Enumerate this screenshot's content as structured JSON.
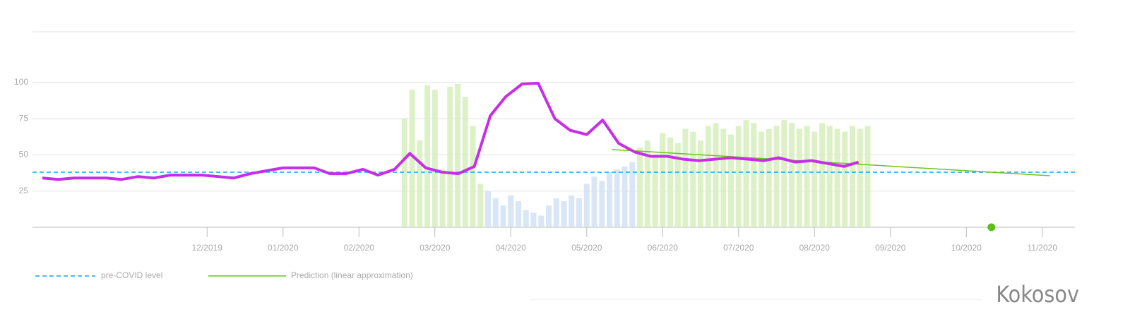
{
  "chart_data": {
    "type": "line",
    "x": [
      -2.17,
      -1.96,
      -1.75,
      -1.53,
      -1.33,
      -1.13,
      -0.91,
      -0.7,
      -0.49,
      -0.28,
      -0.07,
      0.15,
      0.35,
      0.57,
      0.78,
      1.0,
      1.2,
      1.41,
      1.62,
      1.83,
      2.05,
      2.25,
      2.47,
      2.67,
      2.88,
      3.1,
      3.31,
      3.52,
      3.73,
      3.93,
      4.15,
      4.36,
      4.58,
      4.78,
      5.0,
      5.21,
      5.42,
      5.63,
      5.84,
      6.06,
      6.27,
      6.48,
      6.69,
      6.9,
      7.12,
      7.33,
      7.53,
      7.75,
      7.96,
      8.18,
      8.39,
      8.58
    ],
    "values": [
      34,
      33,
      34,
      34,
      34,
      33,
      35,
      34,
      36,
      36,
      36,
      35,
      34,
      37,
      39,
      41,
      41,
      41,
      37,
      37,
      40,
      36,
      40,
      51,
      41,
      38,
      37,
      42,
      77,
      90,
      99,
      99.5,
      75,
      67,
      64,
      74,
      58,
      52,
      49,
      49,
      47,
      46,
      47,
      48,
      47,
      46,
      48,
      45,
      46,
      44,
      42,
      45
    ],
    "color": "#c62ee8",
    "bars": [
      {
        "color": "#d4edb8",
        "x": [
          2.6,
          2.7,
          2.8,
          2.9,
          3.0,
          3.1,
          3.2,
          3.3,
          3.4,
          3.5,
          3.6,
          5.7,
          5.8,
          5.9,
          6.0,
          6.1,
          6.2,
          6.3,
          6.4,
          6.5,
          6.6,
          6.7,
          6.8,
          6.9,
          7.0,
          7.1,
          7.2,
          7.3,
          7.4,
          7.5,
          7.6,
          7.7,
          7.8,
          7.9,
          8.0,
          8.1,
          8.2,
          8.3,
          8.4,
          8.5,
          8.6,
          8.7
        ],
        "values": [
          75,
          95,
          60,
          98,
          95,
          40,
          97,
          99,
          90,
          70,
          30,
          55,
          60,
          50,
          65,
          62,
          58,
          68,
          66,
          60,
          70,
          72,
          68,
          64,
          70,
          74,
          72,
          66,
          68,
          70,
          74,
          72,
          68,
          70,
          66,
          72,
          70,
          68,
          66,
          70,
          68,
          70
        ]
      },
      {
        "color": "#cfe0f3",
        "x": [
          3.7,
          3.8,
          3.9,
          4.0,
          4.1,
          4.2,
          4.3,
          4.4,
          4.5,
          4.6,
          4.7,
          4.8,
          4.9,
          5.0,
          5.1,
          5.2,
          5.3,
          5.4,
          5.5,
          5.6
        ],
        "values": [
          25,
          20,
          15,
          22,
          18,
          12,
          10,
          8,
          15,
          20,
          18,
          22,
          20,
          30,
          35,
          32,
          38,
          40,
          42,
          45
        ]
      }
    ],
    "reference_line": {
      "name": "pre-COVID level",
      "value": 38,
      "color": "#1aa3e8"
    },
    "prediction": {
      "name": "Prediction (linear approximation)",
      "x": [
        5.33,
        11.1
      ],
      "values": [
        53.7,
        35.6
      ],
      "color": "#6cc41f"
    },
    "marker": {
      "x": 10.33,
      "value": 0,
      "color": "#5cbf1a"
    },
    "xlim": [
      -2.3,
      11.43
    ],
    "xticks": [
      {
        "value": 0,
        "label": "12/2019"
      },
      {
        "value": 1,
        "label": "01/2020"
      },
      {
        "value": 2,
        "label": "02/2020"
      },
      {
        "value": 3,
        "label": "03/2020"
      },
      {
        "value": 4,
        "label": "04/2020"
      },
      {
        "value": 5,
        "label": "05/2020"
      },
      {
        "value": 6,
        "label": "06/2020"
      },
      {
        "value": 7,
        "label": "07/2020"
      },
      {
        "value": 8,
        "label": "08/2020"
      },
      {
        "value": 9,
        "label": "09/2020"
      },
      {
        "value": 10,
        "label": "10/2020"
      },
      {
        "value": 11,
        "label": "11/2020"
      }
    ],
    "ylim": [
      0,
      135
    ],
    "yticks": [
      25,
      50,
      75,
      100
    ],
    "grid": true,
    "brand": "Kokosov"
  }
}
